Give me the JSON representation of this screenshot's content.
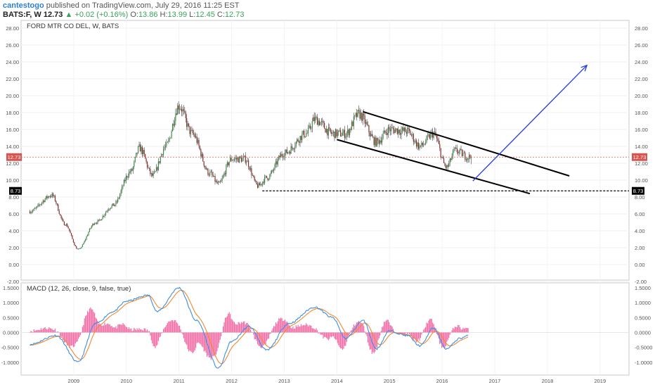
{
  "header": {
    "author": "cantestogo",
    "published_text": "published on TradingView.com, July 29, 2016 11:25 EST",
    "symbol": "BATS:F, W",
    "last": "12.73",
    "change_arrow": "▲",
    "change": "+0.02 (+0.16%)",
    "o_label": "O:",
    "o_value": "13.86",
    "h_label": "H:",
    "h_value": "13.99",
    "l_label": "L:",
    "l_value": "12.45",
    "c_label": "C:",
    "c_value": "12.73"
  },
  "main_pane": {
    "legend": "FORD MTR CO DEL, W, BATS",
    "y_ticks": [
      "28.00",
      "26.00",
      "24.00",
      "22.00",
      "20.00",
      "18.00",
      "16.00",
      "14.00",
      "12.00",
      "10.00",
      "8.00",
      "6.00",
      "4.00",
      "2.00",
      "0.00",
      "-2.00"
    ],
    "price_marker": "12.73",
    "support_marker": "8.73"
  },
  "macd_pane": {
    "legend": "MACD (12, 26, close, 9, false, true)",
    "y_ticks": [
      "1.5000",
      "1.0000",
      "0.5000",
      "0.0000",
      "-0.5000",
      "-1.0000"
    ]
  },
  "x_axis": {
    "ticks": [
      "2009",
      "2010",
      "2011",
      "2012",
      "2013",
      "2014",
      "2015",
      "2016",
      "2017",
      "2018",
      "2019"
    ]
  },
  "colors": {
    "up": "#3d8c4f",
    "down": "#8b2e2e",
    "price_line": "#d9534f",
    "macd_line": "#3d8fe0",
    "signal_line": "#f08a2c",
    "histogram": "#f06fa8",
    "target_arrow": "#1f3bdb",
    "channel": "#000000"
  },
  "chart_data": {
    "type": "candlestick",
    "interval": "W",
    "ylim": [
      -2,
      29
    ],
    "anchors": [
      {
        "x": "2008-03",
        "y": 6.3
      },
      {
        "x": "2008-08",
        "y": 8.2
      },
      {
        "x": "2008-11",
        "y": 4.8
      },
      {
        "x": "2009-02",
        "y": 1.8
      },
      {
        "x": "2009-06",
        "y": 5.0
      },
      {
        "x": "2009-10",
        "y": 7.0
      },
      {
        "x": "2010-02",
        "y": 11.0
      },
      {
        "x": "2010-04",
        "y": 13.8
      },
      {
        "x": "2010-07",
        "y": 10.5
      },
      {
        "x": "2010-10",
        "y": 14.0
      },
      {
        "x": "2011-01",
        "y": 18.8
      },
      {
        "x": "2011-04",
        "y": 15.5
      },
      {
        "x": "2011-08",
        "y": 10.8
      },
      {
        "x": "2011-10",
        "y": 9.5
      },
      {
        "x": "2012-01",
        "y": 12.5
      },
      {
        "x": "2012-04",
        "y": 12.5
      },
      {
        "x": "2012-07",
        "y": 9.3
      },
      {
        "x": "2012-09",
        "y": 10.3
      },
      {
        "x": "2013-01",
        "y": 13.2
      },
      {
        "x": "2013-06",
        "y": 15.5
      },
      {
        "x": "2013-08",
        "y": 17.2
      },
      {
        "x": "2013-12",
        "y": 15.5
      },
      {
        "x": "2014-03",
        "y": 15.5
      },
      {
        "x": "2014-06",
        "y": 17.8
      },
      {
        "x": "2014-10",
        "y": 14.5
      },
      {
        "x": "2015-01",
        "y": 16.0
      },
      {
        "x": "2015-05",
        "y": 15.8
      },
      {
        "x": "2015-08",
        "y": 14.0
      },
      {
        "x": "2015-11",
        "y": 15.5
      },
      {
        "x": "2016-02",
        "y": 11.5
      },
      {
        "x": "2016-04",
        "y": 13.5
      },
      {
        "x": "2016-07",
        "y": 12.73
      }
    ],
    "last_close": 12.73,
    "drawings": [
      {
        "type": "trend_line",
        "name": "channel upper",
        "from": {
          "x": "2014-07",
          "y": 18.1
        },
        "to": {
          "x": "2018-06",
          "y": 10.5
        }
      },
      {
        "type": "trend_line",
        "name": "channel lower",
        "from": {
          "x": "2014-01",
          "y": 14.8
        },
        "to": {
          "x": "2017-09",
          "y": 8.4
        }
      },
      {
        "type": "horizontal_ray",
        "name": "support",
        "from": {
          "x": "2012-08",
          "y": 8.73
        }
      },
      {
        "type": "arrow",
        "name": "projection",
        "from": {
          "x": "2016-08",
          "y": 9.9
        },
        "to": {
          "x": "2018-10",
          "y": 23.6
        }
      }
    ],
    "macd": {
      "params": "12, 26, close, 9, false, true",
      "ylim": [
        -1.3,
        1.55
      ],
      "anchors": [
        {
          "x": "2008-03",
          "y": -0.4
        },
        {
          "x": "2008-09",
          "y": -0.1
        },
        {
          "x": "2009-02",
          "y": -1.0
        },
        {
          "x": "2009-06",
          "y": 0.3
        },
        {
          "x": "2009-10",
          "y": 0.7
        },
        {
          "x": "2010-01",
          "y": 1.05
        },
        {
          "x": "2010-06",
          "y": 1.25
        },
        {
          "x": "2010-08",
          "y": 0.7
        },
        {
          "x": "2011-01",
          "y": 1.5
        },
        {
          "x": "2011-05",
          "y": 0.4
        },
        {
          "x": "2011-10",
          "y": -1.2
        },
        {
          "x": "2012-01",
          "y": -0.3
        },
        {
          "x": "2012-05",
          "y": 0.2
        },
        {
          "x": "2012-09",
          "y": -0.6
        },
        {
          "x": "2013-02",
          "y": 0.3
        },
        {
          "x": "2013-08",
          "y": 0.85
        },
        {
          "x": "2013-12",
          "y": 0.5
        },
        {
          "x": "2014-03",
          "y": -0.2
        },
        {
          "x": "2014-07",
          "y": 0.4
        },
        {
          "x": "2014-10",
          "y": -0.55
        },
        {
          "x": "2015-01",
          "y": 0.05
        },
        {
          "x": "2015-05",
          "y": -0.1
        },
        {
          "x": "2015-08",
          "y": -0.45
        },
        {
          "x": "2015-11",
          "y": 0.15
        },
        {
          "x": "2016-02",
          "y": -0.55
        },
        {
          "x": "2016-05",
          "y": -0.2
        },
        {
          "x": "2016-07",
          "y": -0.1
        }
      ]
    }
  }
}
